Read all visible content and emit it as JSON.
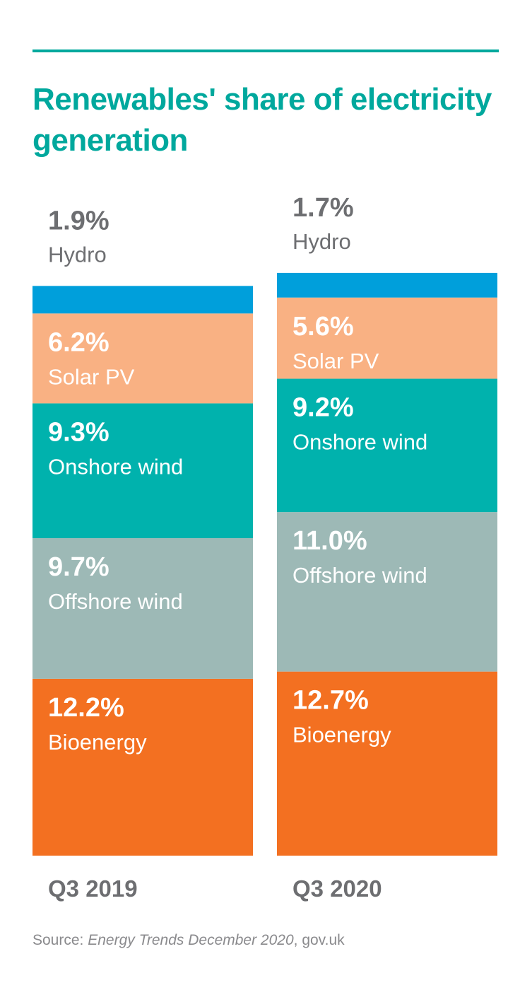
{
  "chart_data": {
    "type": "bar",
    "stacked": true,
    "title": "Renewables' share of electricity generation",
    "categories": [
      "Q3 2019",
      "Q3 2020"
    ],
    "series": [
      {
        "name": "Bioenergy",
        "values": [
          12.2,
          12.7
        ],
        "labels": [
          "12.2%",
          "12.7%"
        ]
      },
      {
        "name": "Offshore wind",
        "values": [
          9.7,
          11.0
        ],
        "labels": [
          "9.7%",
          "11.0%"
        ]
      },
      {
        "name": "Onshore wind",
        "values": [
          9.3,
          9.2
        ],
        "labels": [
          "9.3%",
          "9.2%"
        ]
      },
      {
        "name": "Solar PV",
        "values": [
          6.2,
          5.6
        ],
        "labels": [
          "6.2%",
          "5.6%"
        ]
      },
      {
        "name": "Hydro",
        "values": [
          1.9,
          1.7
        ],
        "labels": [
          "1.9%",
          "1.7%"
        ]
      }
    ],
    "colors": {
      "Bioenergy": "#f37021",
      "Offshore wind": "#9db9b6",
      "Onshore wind": "#00b2ad",
      "Solar PV": "#f9b183",
      "Hydro": "#009fdb"
    },
    "xlabel": "",
    "ylabel": "",
    "grid": false,
    "legend": "none"
  },
  "source": {
    "prefix": "Source: ",
    "publication": "Energy Trends December 2020",
    "suffix": ", gov.uk"
  }
}
